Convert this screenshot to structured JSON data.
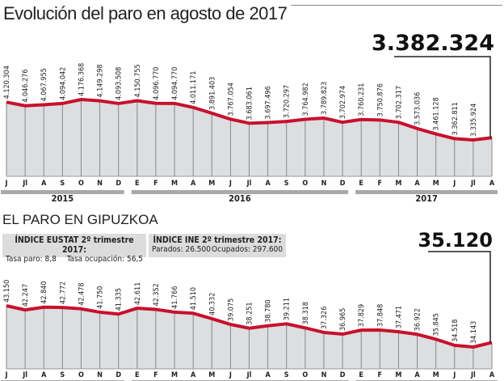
{
  "title": "Evolución del paro en agosto de 2017",
  "subtitle": "EL PARO EN GIPUZKOA",
  "box_eustat": {
    "title": "ÍNDICE EUSTAT 2º trimestre 2017:",
    "left": "Tasa paro: 8,8",
    "right": "Tasa ocupación: 56,5"
  },
  "box_ine": {
    "title": "ÍNDICE INE 2º trimestre 2017:",
    "left": "Parados: 26.500",
    "right": "Ocupados: 297.600"
  },
  "colors": {
    "line": "#c8102e",
    "fill": "#dcdee0",
    "year_bar": "#a9a9a9"
  },
  "chart_data": [
    {
      "type": "area",
      "highlight": "3.382.324",
      "categories": [
        "J",
        "Jl",
        "A",
        "S",
        "O",
        "N",
        "D",
        "E",
        "F",
        "M",
        "A",
        "M",
        "J",
        "Jl",
        "A",
        "S",
        "O",
        "N",
        "D",
        "E",
        "F",
        "M",
        "A",
        "M",
        "J",
        "Jl",
        "A"
      ],
      "years": [
        {
          "label": "2015",
          "from": 0,
          "to": 6
        },
        {
          "label": "2016",
          "from": 7,
          "to": 18
        },
        {
          "label": "2017",
          "from": 19,
          "to": 26
        }
      ],
      "labels": [
        "4.120.304",
        "4.046.276",
        "4.067.955",
        "4.094.042",
        "4.176.368",
        "4.149.298",
        "4.093.508",
        "4.150.755",
        "4.096.770",
        "4.094.770",
        "4.011.171",
        "3.891.403",
        "3.767.054",
        "3.683.061",
        "3.697.496",
        "3.720.297",
        "3.764.982",
        "3.789.823",
        "3.702.974",
        "3.760.231",
        "3.750.876",
        "3.702.317",
        "3.573.036",
        "3.461.128",
        "3.362.811",
        "3.335.924",
        ""
      ],
      "values": [
        4120304,
        4046276,
        4067955,
        4094042,
        4176368,
        4149298,
        4093508,
        4150755,
        4096770,
        4094770,
        4011171,
        3891403,
        3767054,
        3683061,
        3697496,
        3720297,
        3764982,
        3789823,
        3702974,
        3760231,
        3750876,
        3702317,
        3573036,
        3461128,
        3362811,
        3335924,
        3382324
      ]
    },
    {
      "type": "area",
      "highlight": "35.120",
      "categories": [
        "J",
        "Jl",
        "A",
        "S",
        "O",
        "N",
        "D",
        "E",
        "F",
        "M",
        "A",
        "M",
        "J",
        "Jl",
        "A",
        "S",
        "O",
        "N",
        "D",
        "E",
        "F",
        "M",
        "A",
        "M",
        "J",
        "Jl",
        "A"
      ],
      "labels": [
        "43.150",
        "42.247",
        "42.840",
        "42.772",
        "42.478",
        "41.750",
        "41.335",
        "42.611",
        "42.352",
        "41.766",
        "41.510",
        "40.332",
        "39.075",
        "38.251",
        "38.780",
        "39.211",
        "38.318",
        "37.326",
        "36.965",
        "37.829",
        "37.848",
        "37.471",
        "36.922",
        "35.845",
        "34.518",
        "34.143",
        ""
      ],
      "values": [
        43150,
        42247,
        42840,
        42772,
        42478,
        41750,
        41335,
        42611,
        42352,
        41766,
        41510,
        40332,
        39075,
        38251,
        38780,
        39211,
        38318,
        37326,
        36965,
        37829,
        37848,
        37471,
        36922,
        35845,
        34518,
        34143,
        35120
      ]
    }
  ]
}
